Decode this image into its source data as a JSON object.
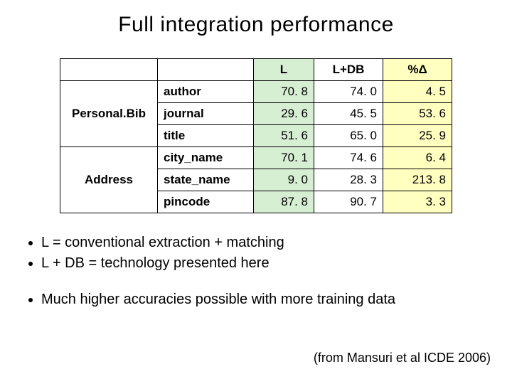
{
  "title": "Full  integration performance",
  "table": {
    "headers": {
      "L": "L",
      "LDB": "L+DB",
      "delta": "%Δ"
    },
    "col_bg": {
      "L": "#d6efd2",
      "LDB": "#ffffff",
      "delta": "#ffffc0"
    },
    "border_color": "#000000",
    "font_size": 17,
    "groups": [
      {
        "name": "Personal.Bib",
        "rows": [
          {
            "metric": "author",
            "L": "70. 8",
            "LDB": "74. 0",
            "delta": "4. 5"
          },
          {
            "metric": "journal",
            "L": "29. 6",
            "LDB": "45. 5",
            "delta": "53. 6"
          },
          {
            "metric": "title",
            "L": "51. 6",
            "LDB": "65. 0",
            "delta": "25. 9"
          }
        ]
      },
      {
        "name": "Address",
        "rows": [
          {
            "metric": "city_name",
            "L": "70. 1",
            "LDB": "74. 6",
            "delta": "6. 4"
          },
          {
            "metric": "state_name",
            "L": "9. 0",
            "LDB": "28. 3",
            "delta": "213. 8"
          },
          {
            "metric": "pincode",
            "L": "87. 8",
            "LDB": "90. 7",
            "delta": "3. 3"
          }
        ]
      }
    ]
  },
  "bullets1": [
    "L = conventional extraction + matching",
    "L + DB = technology presented here"
  ],
  "bullets2": [
    "Much higher accuracies possible with more training data"
  ],
  "citation": "(from Mansuri et al ICDE 2006)"
}
